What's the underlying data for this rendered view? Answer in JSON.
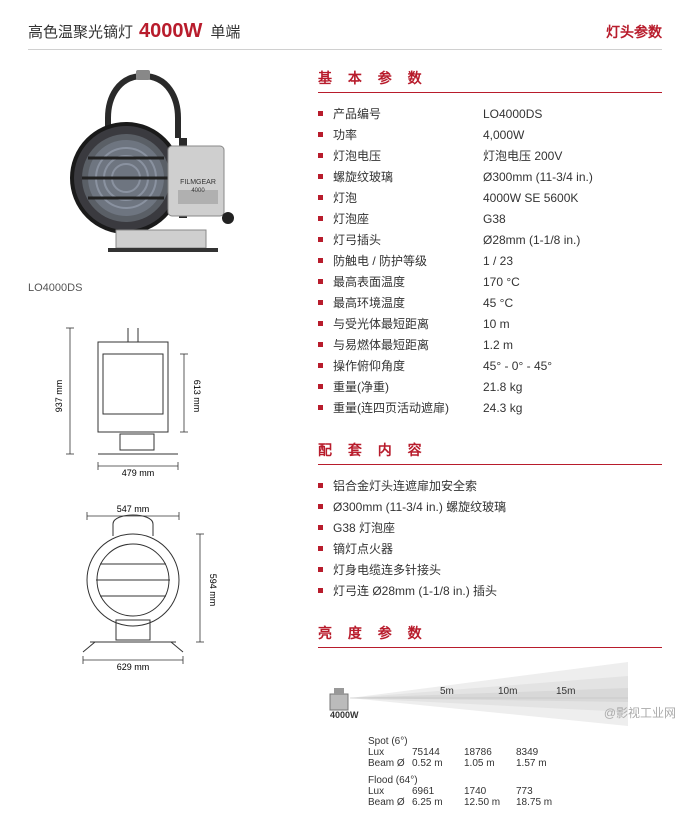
{
  "header": {
    "title": "高色温聚光镝灯",
    "model": "4000W",
    "suffix": "单端",
    "right": "灯头参数"
  },
  "left": {
    "model_label": "LO4000DS",
    "dim_side": {
      "height": "937 mm",
      "inner_h": "613 mm",
      "width": "479 mm"
    },
    "dim_front": {
      "top_w": "547 mm",
      "side_h": "594 mm",
      "bot_w": "629 mm"
    }
  },
  "specs_title": "基 本 参 数",
  "specs": [
    {
      "label": "产品编号",
      "value": "LO4000DS"
    },
    {
      "label": "功率",
      "value": "4,000W"
    },
    {
      "label": "灯泡电压",
      "value": "灯泡电压 200V"
    },
    {
      "label": "螺旋纹玻璃",
      "value": "Ø300mm (11-3/4 in.)"
    },
    {
      "label": "灯泡",
      "value": "4000W SE 5600K"
    },
    {
      "label": "灯泡座",
      "value": "G38"
    },
    {
      "label": "灯弓插头",
      "value": "Ø28mm (1-1/8 in.)"
    },
    {
      "label": "防触电 / 防护等级",
      "value": "1 / 23"
    },
    {
      "label": "最高表面温度",
      "value": "170 °C"
    },
    {
      "label": "最高环境温度",
      "value": "45 °C"
    },
    {
      "label": "与受光体最短距离",
      "value": "10 m"
    },
    {
      "label": "与易燃体最短距离",
      "value": "1.2 m"
    },
    {
      "label": "操作俯仰角度",
      "value": "45° - 0° - 45°"
    },
    {
      "label": "重量(净重)",
      "value": "21.8 kg"
    },
    {
      "label": "重量(连四页活动遮扉)",
      "value": "24.3 kg"
    }
  ],
  "accessories_title": "配 套 内 容",
  "accessories": [
    "铝合金灯头连遮扉加安全索",
    "Ø300mm (11-3/4 in.) 螺旋纹玻璃",
    "G38 灯泡座",
    "镝灯点火器",
    "灯身电缆连多针接头",
    "灯弓连 Ø28mm (1-1/8 in.) 插头"
  ],
  "brightness_title": "亮 度 参 数",
  "beam": {
    "power": "4000W",
    "distances": [
      "5m",
      "10m",
      "15m"
    ],
    "spot": {
      "title": "Spot (6°)",
      "lux": [
        "75144",
        "18786",
        "8349"
      ],
      "beam": [
        "0.52 m",
        "1.05 m",
        "1.57 m"
      ]
    },
    "flood": {
      "title": "Flood (64°)",
      "lux": [
        "6961",
        "1740",
        "773"
      ],
      "beam": [
        "6.25 m",
        "12.50 m",
        "18.75 m"
      ]
    },
    "row_labels": {
      "lux": "Lux",
      "beam": "Beam Ø"
    }
  },
  "watermark": "@影视工业网"
}
